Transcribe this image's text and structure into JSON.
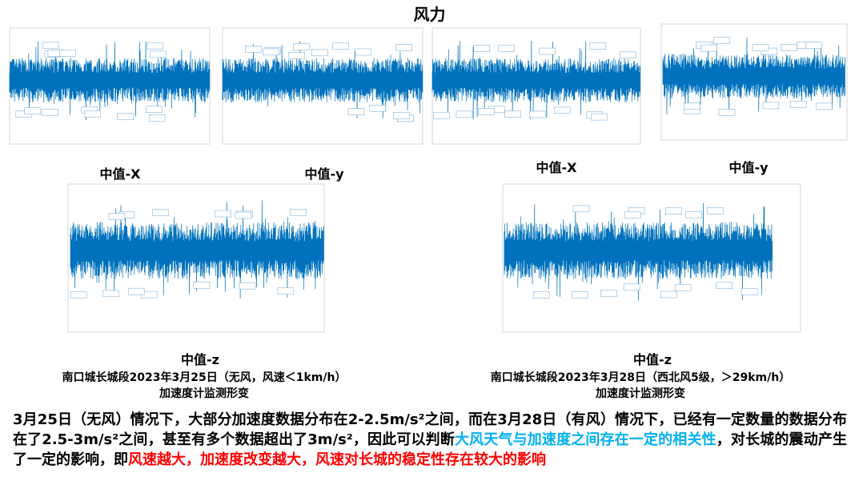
{
  "title": "风力",
  "panels": [
    {
      "label": "中值-X"
    },
    {
      "label": "中值-y"
    },
    {
      "label": "中值-X"
    },
    {
      "label": "中值-y"
    },
    {
      "label": "中值-z"
    },
    {
      "label": "中值-z"
    }
  ],
  "captions": [
    {
      "lines": [
        "南口城长城段2023年3月25日（无风，风速＜1km/h）",
        "加速度计监测形变"
      ]
    },
    {
      "lines": [
        "南口城长城段2023年3月28日（西北风5级，＞29km/h）",
        "加速度计监测形变"
      ]
    }
  ],
  "conclusion": {
    "segments": [
      {
        "text": "3月25日（无风）情况下，大部分加速度数据分布在2-2.5m/s²之间，而在3月28日（有风）情况下，已经有一定数量的数据分布在了2.5-3m/s²之间，甚至有多个数据超出了3m/s²，因此可以判断",
        "color": "#000000"
      },
      {
        "text": "大风天气与加速度之间存在一定的相关性",
        "color": "#00b0f0"
      },
      {
        "text": "，对长城的震动产生了一定的影响，即",
        "color": "#000000"
      },
      {
        "text": "风速越大，加速度改变越大，风速对长城的稳定性存在较大的影响",
        "color": "#ff0000"
      }
    ]
  }
}
